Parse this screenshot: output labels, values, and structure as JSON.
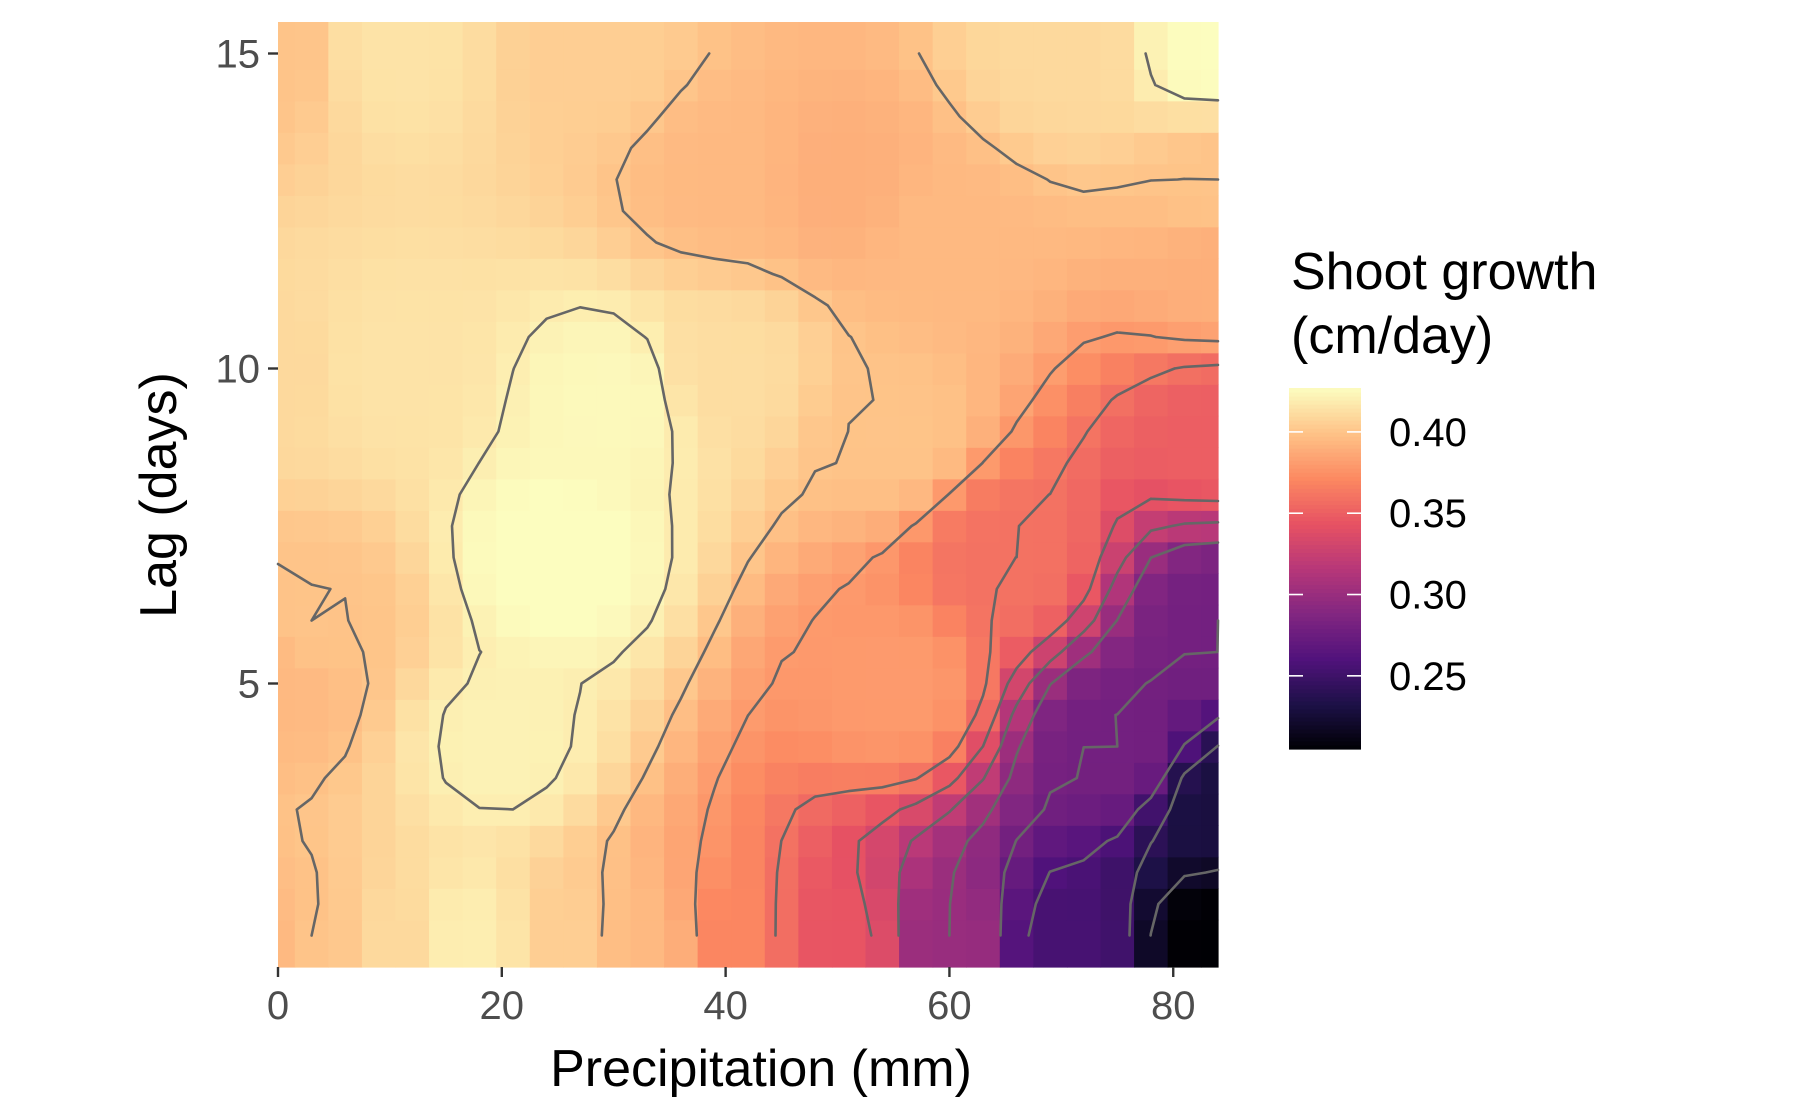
{
  "chart_data": {
    "type": "heatmap",
    "subtype": "filled contour surface with contour lines",
    "title": "",
    "xlabel": "Precipitation (mm)",
    "ylabel": "Lag (days)",
    "xlim": [
      0,
      84
    ],
    "ylim": [
      0.5,
      15.5
    ],
    "x_ticks": [
      {
        "value": 0,
        "label": "0"
      },
      {
        "value": 20,
        "label": "20"
      },
      {
        "value": 40,
        "label": "40"
      },
      {
        "value": 60,
        "label": "60"
      },
      {
        "value": 80,
        "label": "80"
      }
    ],
    "y_ticks": [
      {
        "value": 5,
        "label": "5"
      },
      {
        "value": 10,
        "label": "10"
      },
      {
        "value": 15,
        "label": "15"
      }
    ],
    "grid": false,
    "legend": {
      "title_lines": [
        "Shoot growth",
        "(cm/day)"
      ],
      "placement": "right",
      "range": [
        0.205,
        0.427
      ],
      "ticks": [
        {
          "value": 0.4,
          "label": "0.40"
        },
        {
          "value": 0.35,
          "label": "0.35"
        },
        {
          "value": 0.3,
          "label": "0.30"
        },
        {
          "value": 0.25,
          "label": "0.25"
        }
      ]
    },
    "colormap": {
      "name": "magma",
      "stops": [
        "#000004",
        "#1d1147",
        "#51127c",
        "#822681",
        "#b73779",
        "#e75263",
        "#fc8961",
        "#fec287",
        "#fcfdbf"
      ]
    },
    "contour_color": "#666666",
    "grid_resolution": {
      "x_step": 3,
      "y_step": 0.5
    },
    "surface_samples": [
      {
        "x": 0,
        "y": 1,
        "z": 0.395
      },
      {
        "x": 0,
        "y": 5,
        "z": 0.395
      },
      {
        "x": 0,
        "y": 10,
        "z": 0.41
      },
      {
        "x": 0,
        "y": 15,
        "z": 0.4
      },
      {
        "x": 3,
        "y": 1,
        "z": 0.4
      },
      {
        "x": 3,
        "y": 6,
        "z": 0.4
      },
      {
        "x": 10,
        "y": 1,
        "z": 0.41
      },
      {
        "x": 17,
        "y": 1,
        "z": 0.42
      },
      {
        "x": 10,
        "y": 10,
        "z": 0.415
      },
      {
        "x": 10,
        "y": 15,
        "z": 0.415
      },
      {
        "x": 25,
        "y": 7,
        "z": 0.428
      },
      {
        "x": 30,
        "y": 9.5,
        "z": 0.425
      },
      {
        "x": 20,
        "y": 4,
        "z": 0.422
      },
      {
        "x": 28,
        "y": 15,
        "z": 0.405
      },
      {
        "x": 40,
        "y": 13,
        "z": 0.395
      },
      {
        "x": 50,
        "y": 13,
        "z": 0.39
      },
      {
        "x": 55,
        "y": 9,
        "z": 0.4
      },
      {
        "x": 40,
        "y": 10,
        "z": 0.412
      },
      {
        "x": 26,
        "y": 1,
        "z": 0.405
      },
      {
        "x": 33,
        "y": 1,
        "z": 0.395
      },
      {
        "x": 40,
        "y": 1,
        "z": 0.37
      },
      {
        "x": 50,
        "y": 1,
        "z": 0.345
      },
      {
        "x": 60,
        "y": 1,
        "z": 0.3
      },
      {
        "x": 70,
        "y": 1,
        "z": 0.255
      },
      {
        "x": 84,
        "y": 1,
        "z": 0.205
      },
      {
        "x": 84,
        "y": 3,
        "z": 0.23
      },
      {
        "x": 84,
        "y": 6,
        "z": 0.28
      },
      {
        "x": 84,
        "y": 9,
        "z": 0.35
      },
      {
        "x": 84,
        "y": 11.5,
        "z": 0.39
      },
      {
        "x": 84,
        "y": 13,
        "z": 0.4
      },
      {
        "x": 84,
        "y": 15,
        "z": 0.427
      },
      {
        "x": 70,
        "y": 15,
        "z": 0.41
      },
      {
        "x": 60,
        "y": 12,
        "z": 0.395
      },
      {
        "x": 65,
        "y": 7,
        "z": 0.36
      },
      {
        "x": 75,
        "y": 4,
        "z": 0.28
      },
      {
        "x": 55,
        "y": 5,
        "z": 0.38
      }
    ]
  }
}
